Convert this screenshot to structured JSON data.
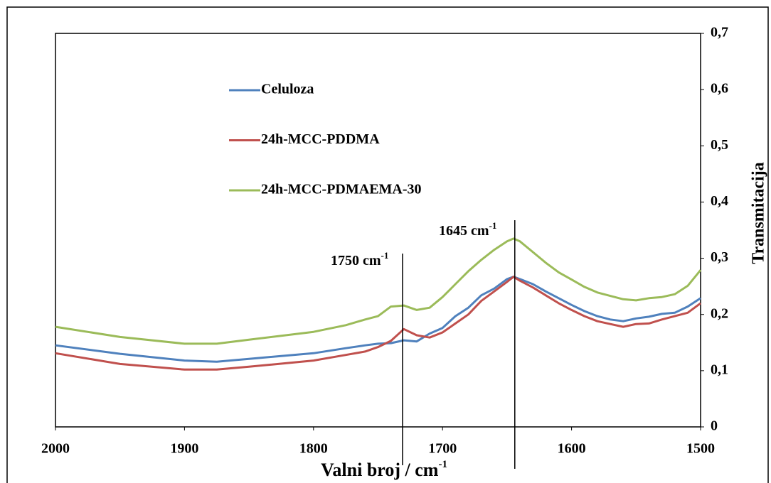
{
  "chart_data": {
    "type": "line",
    "xlabel": {
      "text": "Valni broj / cm",
      "sup": "-1"
    },
    "ylabel": "Transmitacija",
    "x": [
      2000,
      1950,
      1900,
      1875,
      1850,
      1800,
      1775,
      1760,
      1750,
      1740,
      1730,
      1720,
      1710,
      1700,
      1690,
      1680,
      1670,
      1660,
      1650,
      1645,
      1640,
      1630,
      1620,
      1610,
      1600,
      1590,
      1580,
      1570,
      1560,
      1550,
      1540,
      1530,
      1520,
      1510,
      1500
    ],
    "series": [
      {
        "name": "Celuloza",
        "color": "#4f81bd",
        "values": [
          0.145,
          0.13,
          0.118,
          0.116,
          0.121,
          0.131,
          0.14,
          0.145,
          0.148,
          0.149,
          0.154,
          0.152,
          0.166,
          0.176,
          0.197,
          0.212,
          0.234,
          0.246,
          0.263,
          0.267,
          0.263,
          0.254,
          0.241,
          0.229,
          0.217,
          0.206,
          0.197,
          0.191,
          0.188,
          0.193,
          0.196,
          0.201,
          0.203,
          0.214,
          0.229
        ]
      },
      {
        "name": "24h-MCC-PDDMA",
        "color": "#c0504d",
        "values": [
          0.131,
          0.112,
          0.102,
          0.102,
          0.107,
          0.118,
          0.128,
          0.134,
          0.142,
          0.153,
          0.174,
          0.163,
          0.159,
          0.168,
          0.184,
          0.2,
          0.224,
          0.241,
          0.258,
          0.267,
          0.26,
          0.248,
          0.234,
          0.22,
          0.208,
          0.197,
          0.188,
          0.183,
          0.178,
          0.183,
          0.184,
          0.191,
          0.197,
          0.203,
          0.22
        ]
      },
      {
        "name": "24h-MCC-PDMAEMA-30",
        "color": "#9bbb59",
        "values": [
          0.178,
          0.16,
          0.148,
          0.148,
          0.155,
          0.169,
          0.181,
          0.191,
          0.197,
          0.214,
          0.216,
          0.208,
          0.212,
          0.231,
          0.254,
          0.277,
          0.297,
          0.315,
          0.33,
          0.335,
          0.33,
          0.311,
          0.292,
          0.275,
          0.262,
          0.249,
          0.239,
          0.233,
          0.227,
          0.225,
          0.229,
          0.231,
          0.236,
          0.251,
          0.279
        ]
      }
    ],
    "xlim": [
      2000,
      1500
    ],
    "xticks": [
      2000,
      1900,
      1800,
      1700,
      1600,
      1500
    ],
    "ylim": [
      0,
      0.7
    ],
    "yticks": [
      0,
      {
        "value": 0.1,
        "label": "0,1"
      },
      {
        "value": 0.2,
        "label": "0,2"
      },
      {
        "value": 0.3,
        "label": "0,3"
      },
      {
        "value": 0.4,
        "label": "0,4"
      },
      {
        "value": 0.5,
        "label": "0,5"
      },
      {
        "value": 0.6,
        "label": "0,6"
      },
      {
        "value": 0.7,
        "label": "0,7"
      }
    ],
    "y_axis_side": "right",
    "grid": false,
    "legend": "top-left",
    "annotations": [
      {
        "text": "1750 cm",
        "sup": "-1",
        "x": 1731
      },
      {
        "text": "1645 cm",
        "sup": "-1",
        "x": 1644
      }
    ]
  }
}
